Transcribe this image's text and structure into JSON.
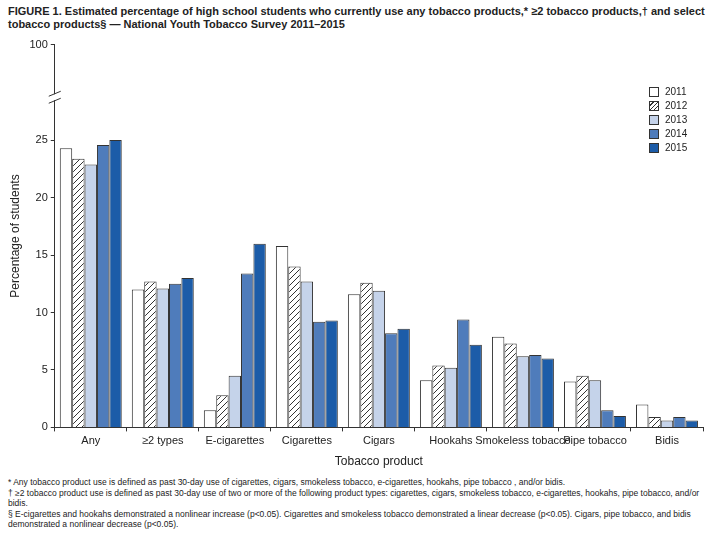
{
  "chart_data": {
    "type": "bar",
    "title": "FIGURE 1. Estimated percentage of high school students who currently use any tobacco products,* ≥2 tobacco products,† and select tobacco products§ — National Youth Tobacco Survey 2011–2015",
    "x_label": "Tobacco product",
    "y_label": "Percentage of students",
    "categories": [
      "Any",
      "≥2 types",
      "E-cigarettes",
      "Cigarettes",
      "Cigars",
      "Hookahs",
      "Smokeless tobacco",
      "Pipe tobacco",
      "Bidis"
    ],
    "series": [
      {
        "name": "2011",
        "color": "#ffffff",
        "values": [
          24.3,
          12.0,
          1.5,
          15.8,
          11.6,
          4.1,
          7.9,
          4.0,
          2.0
        ]
      },
      {
        "name": "2012",
        "color": "#ffffff",
        "marker": "hatch",
        "values": [
          23.4,
          12.7,
          2.8,
          14.0,
          12.6,
          5.4,
          7.3,
          4.5,
          0.9
        ]
      },
      {
        "name": "2013",
        "color": "#c5d3ea",
        "values": [
          22.9,
          12.1,
          4.5,
          12.7,
          11.9,
          5.2,
          6.2,
          4.1,
          0.6
        ]
      },
      {
        "name": "2014",
        "color": "#4f7cbb",
        "values": [
          24.6,
          12.5,
          13.4,
          9.2,
          8.2,
          9.4,
          6.3,
          1.5,
          0.9
        ]
      },
      {
        "name": "2015",
        "color": "#1c5ca8",
        "values": [
          25.3,
          13.0,
          16.0,
          9.3,
          8.6,
          7.2,
          6.0,
          1.0,
          0.6
        ]
      }
    ],
    "ylim": [
      0,
      100
    ],
    "yticks": [
      0,
      5,
      10,
      15,
      20,
      25,
      100
    ],
    "grid": false,
    "legend": "upper right",
    "annotations": [
      "* Any tobacco product use is defined as past 30-day use of cigarettes, cigars, smokeless tobacco, e-cigarettes, hookahs, pipe tobacco , and/or bidis.",
      "† ≥2 tobacco product use is defined as past 30-day use of two or more of the following product types: cigarettes, cigars, smokeless tobacco, e-cigarettes, hookahs, pipe tobacco, and/or bidis.",
      "§ E-cigarettes and hookahs demonstrated a nonlinear increase (p<0.05). Cigarettes and smokeless tobacco demonstrated a linear decrease (p<0.05). Cigars, pipe tobacco, and bidis demonstrated a nonlinear decrease (p<0.05)."
    ]
  }
}
